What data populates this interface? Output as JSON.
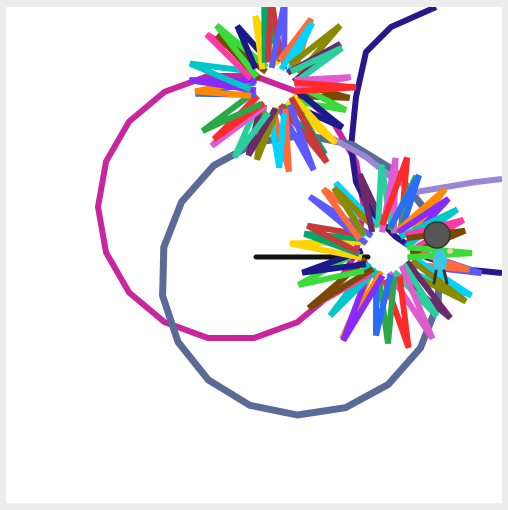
{
  "app": {
    "kind": "turtle-drawing-stage"
  },
  "stage": {
    "background": "#ffffff",
    "frame_color": "#ededed"
  },
  "drawing": {
    "palette": {
      "magenta_circle": "#c8259f",
      "slate_circle": "#5b6b97",
      "navy_path": "#2a168c",
      "black_segment": "#111111",
      "lavender_arc": "#9a86d4"
    },
    "star_stroke_colors": [
      "#ff2a2a",
      "#2aa84a",
      "#2a6cff",
      "#ff8a00",
      "#8a2aff",
      "#00c8c8",
      "#ff3aa8",
      "#7a4a00",
      "#3adb3a",
      "#1a1a8a",
      "#ffd400",
      "#00a86b",
      "#c83a3a",
      "#5a5aff",
      "#ff6a3a",
      "#00d4ff",
      "#8a8a00",
      "#6b2a6b",
      "#2acfa0",
      "#e05ad0"
    ]
  },
  "sprite": {
    "name": "turtle-character",
    "body_color": "#3ec6e0",
    "head_color": "#555555"
  }
}
